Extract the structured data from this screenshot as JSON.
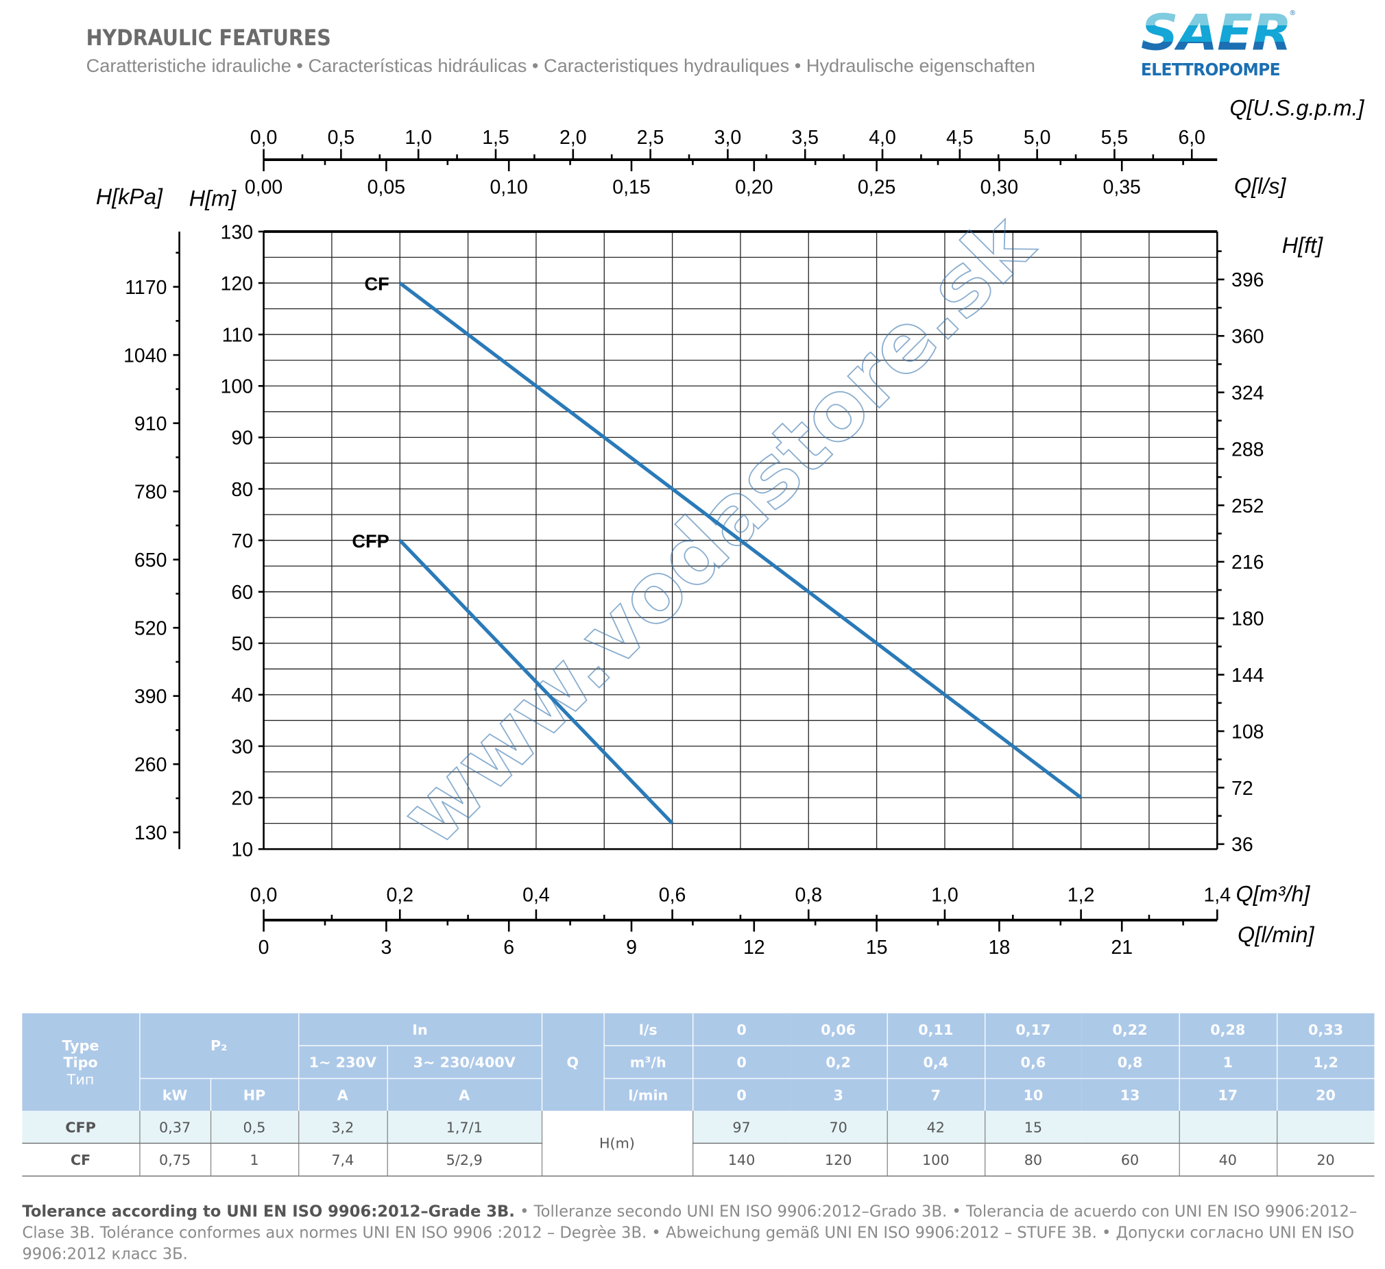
{
  "header": {
    "title": "HYDRAULIC FEATURES",
    "subtitle": "Caratteristiche idrauliche • Características hidráulicas • Caracteristiques hydrauliques • Hydraulische eigenschaften"
  },
  "logo": {
    "brand": "SAER",
    "sub": "ELETTROPOMPE",
    "reg": "®"
  },
  "colors": {
    "curve": "#2a7ab8",
    "table_header": "#adc9e8",
    "table_row_alt": "#e6f4f8",
    "logo_blue": "#1b6fb2"
  },
  "chart_data": {
    "type": "line",
    "watermark": "www.vodastore.sk",
    "grid": true,
    "x": {
      "label": "Q[m³/h]",
      "range": [
        0,
        1.4
      ],
      "ticks": [
        "0,0",
        "0,2",
        "0,4",
        "0,6",
        "0,8",
        "1,0",
        "1,2",
        "1,4"
      ]
    },
    "x2_bottom": {
      "label": "Q[l/min]",
      "ticks": [
        "0",
        "3",
        "6",
        "9",
        "12",
        "15",
        "18",
        "21"
      ]
    },
    "x_top1": {
      "label": "Q[U.S.g.p.m.]",
      "ticks": [
        "0,0",
        "0,5",
        "1,0",
        "1,5",
        "2,0",
        "2,5",
        "3,0",
        "3,5",
        "4,0",
        "4,5",
        "5,0",
        "5,5",
        "6,0"
      ]
    },
    "x_top2": {
      "label": "Q[l/s]",
      "ticks": [
        "0,00",
        "0,05",
        "0,10",
        "0,15",
        "0,20",
        "0,25",
        "0,30",
        "0,35"
      ]
    },
    "y": {
      "label": "H[m]",
      "range": [
        10,
        130
      ],
      "ticks": [
        "10",
        "20",
        "30",
        "40",
        "50",
        "60",
        "70",
        "80",
        "90",
        "100",
        "110",
        "120",
        "130"
      ]
    },
    "y_left2": {
      "label": "H[kPa]",
      "ticks": [
        "130",
        "260",
        "390",
        "520",
        "650",
        "780",
        "910",
        "1040",
        "1170"
      ]
    },
    "y_right": {
      "label": "H[ft]",
      "ticks": [
        "36",
        "72",
        "108",
        "144",
        "180",
        "216",
        "252",
        "288",
        "324",
        "360",
        "396"
      ]
    },
    "series": [
      {
        "name": "CF",
        "points": [
          [
            0.2,
            120
          ],
          [
            1.2,
            20
          ]
        ]
      },
      {
        "name": "CFP",
        "points": [
          [
            0.2,
            70
          ],
          [
            0.6,
            15
          ]
        ]
      }
    ]
  },
  "table": {
    "type_label": [
      "Type",
      "Tipo",
      "Тип"
    ],
    "p2": "P₂",
    "in": "In",
    "v1": "1~ 230V",
    "v3": "3~ 230/400V",
    "q": "Q",
    "kw": "kW",
    "hp": "HP",
    "a1": "A",
    "a3": "A",
    "units": [
      "l/s",
      "m³/h",
      "l/min"
    ],
    "ls": [
      "0",
      "0,06",
      "0,11",
      "0,17",
      "0,22",
      "0,28",
      "0,33"
    ],
    "m3h": [
      "0",
      "0,2",
      "0,4",
      "0,6",
      "0,8",
      "1",
      "1,2"
    ],
    "lmin": [
      "0",
      "3",
      "7",
      "10",
      "13",
      "17",
      "20"
    ],
    "hm": "H(m)",
    "rows": [
      {
        "type": "CFP",
        "kw": "0,37",
        "hp": "0,5",
        "a1": "3,2",
        "a3": "1,7/1",
        "h": [
          "97",
          "70",
          "42",
          "15",
          "",
          "",
          ""
        ]
      },
      {
        "type": "CF",
        "kw": "0,75",
        "hp": "1",
        "a1": "7,4",
        "a3": "5/2,9",
        "h": [
          "140",
          "120",
          "100",
          "80",
          "60",
          "40",
          "20"
        ]
      }
    ]
  },
  "tolerance": {
    "bold": "Tolerance according to UNI EN ISO 9906:2012–Grade 3B.",
    "rest": " •  Tolleranze secondo UNI EN ISO 9906:2012–Grado 3B. • Tolerancia de acuerdo con UNI EN ISO 9906:2012–Clase 3B. Tolérance conformes aux normes UNI EN ISO 9906 :2012 – Degrèe 3B. • Abweichung gemäß UNI EN ISO 9906:2012 – STUFE 3B. • Допуски согласно UNI EN ISO 9906:2012 класс 3Б."
  }
}
